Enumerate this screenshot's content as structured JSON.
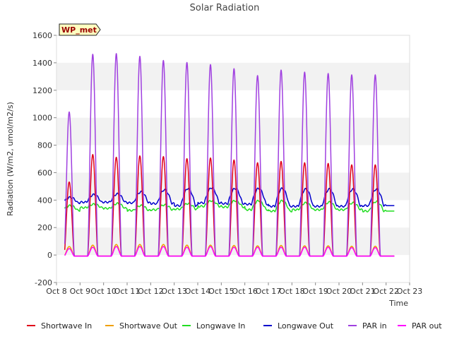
{
  "chart_data": {
    "type": "line",
    "title": "Solar Radiation",
    "xlabel": "Time",
    "ylabel": "Radiation (W/m2, umol/m2/s)",
    "ylim": [
      -200,
      1600
    ],
    "yticks": [
      -200,
      0,
      200,
      400,
      600,
      800,
      1000,
      1200,
      1400,
      1600
    ],
    "xlim": [
      "Oct 8",
      "Oct 23"
    ],
    "xticks": [
      "Oct 8",
      "Oct 9",
      "Oct 10",
      "Oct 11",
      "Oct 12",
      "Oct 13",
      "Oct 14",
      "Oct 15",
      "Oct 16",
      "Oct 17",
      "Oct 18",
      "Oct 19",
      "Oct 20",
      "Oct 21",
      "Oct 22",
      "Oct 23"
    ],
    "grid": "horizontal bands",
    "legend_placement": "bottom",
    "station_label": "WP_met",
    "day_peaks": [
      "Oct 8",
      "Oct 9",
      "Oct 10",
      "Oct 11",
      "Oct 12",
      "Oct 13",
      "Oct 14",
      "Oct 15",
      "Oct 16",
      "Oct 17",
      "Oct 18",
      "Oct 19",
      "Oct 20",
      "Oct 21"
    ],
    "series": [
      {
        "name": "Shortwave In",
        "color": "#e0001a",
        "peaks": [
          540,
          740,
          720,
          730,
          725,
          710,
          715,
          700,
          680,
          690,
          680,
          675,
          665,
          665
        ]
      },
      {
        "name": "Shortwave Out",
        "color": "#f0a000",
        "peaks": [
          70,
          80,
          85,
          85,
          85,
          80,
          80,
          78,
          75,
          78,
          75,
          75,
          72,
          72
        ]
      },
      {
        "name": "Longwave In",
        "color": "#22dd22",
        "night": [
          325,
          345,
          340,
          325,
          330,
          335,
          355,
          350,
          330,
          320,
          330,
          330,
          330,
          320
        ],
        "day": [
          360,
          370,
          375,
          360,
          365,
          375,
          395,
          395,
          395,
          395,
          380,
          385,
          380,
          390
        ]
      },
      {
        "name": "Longwave Out",
        "color": "#0000cc",
        "night": [
          380,
          385,
          385,
          380,
          375,
          360,
          380,
          375,
          370,
          355,
          355,
          355,
          355,
          360
        ],
        "day": [
          420,
          440,
          445,
          460,
          475,
          485,
          490,
          485,
          485,
          485,
          480,
          480,
          480,
          480
        ]
      },
      {
        "name": "PAR in",
        "color": "#a040e0",
        "peaks": [
          1050,
          1470,
          1475,
          1455,
          1425,
          1410,
          1395,
          1365,
          1315,
          1355,
          1340,
          1330,
          1320,
          1320
        ]
      },
      {
        "name": "PAR out",
        "color": "#ff00ff",
        "peaks": [
          55,
          65,
          70,
          70,
          70,
          65,
          70,
          65,
          65,
          65,
          65,
          65,
          62,
          62
        ]
      }
    ]
  }
}
